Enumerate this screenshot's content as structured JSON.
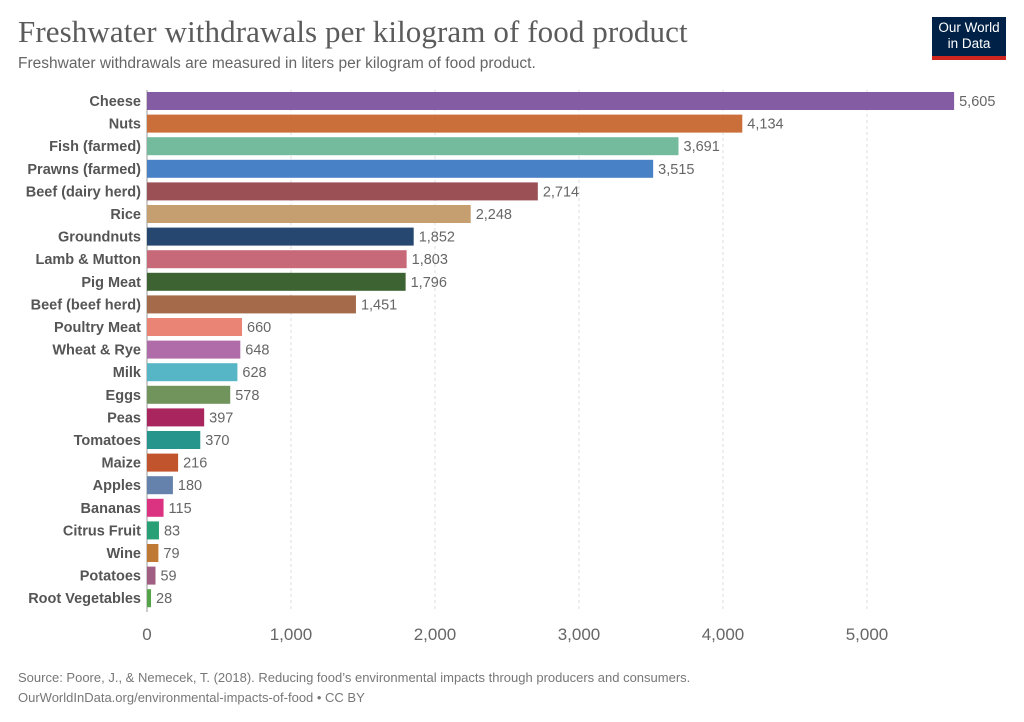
{
  "header": {
    "title": "Freshwater withdrawals per kilogram of food product",
    "subtitle": "Freshwater withdrawals are measured in liters per kilogram of food product.",
    "logo_line1": "Our World",
    "logo_line2": "in Data"
  },
  "footer": {
    "source": "Source: Poore, J., & Nemecek, T. (2018). Reducing food’s environmental impacts through producers and consumers.",
    "url": "OurWorldInData.org/environmental-impacts-of-food • CC BY"
  },
  "chart_data": {
    "type": "bar",
    "orientation": "horizontal",
    "title": "Freshwater withdrawals per kilogram of food product",
    "subtitle": "Freshwater withdrawals are measured in liters per kilogram of food product.",
    "xlabel": "",
    "ylabel": "",
    "xlim": [
      0,
      5605
    ],
    "xticks": [
      0,
      1000,
      2000,
      3000,
      4000,
      5000
    ],
    "xtick_labels": [
      "0",
      "1,000",
      "2,000",
      "3,000",
      "4,000",
      "5,000"
    ],
    "grid": "vertical dashed",
    "categories": [
      "Cheese",
      "Nuts",
      "Fish (farmed)",
      "Prawns (farmed)",
      "Beef (dairy herd)",
      "Rice",
      "Groundnuts",
      "Lamb & Mutton",
      "Pig Meat",
      "Beef (beef herd)",
      "Poultry Meat",
      "Wheat & Rye",
      "Milk",
      "Eggs",
      "Peas",
      "Tomatoes",
      "Maize",
      "Apples",
      "Bananas",
      "Citrus Fruit",
      "Wine",
      "Potatoes",
      "Root Vegetables"
    ],
    "values": [
      5605,
      4134,
      3691,
      3515,
      2714,
      2248,
      1852,
      1803,
      1796,
      1451,
      660,
      648,
      628,
      578,
      397,
      370,
      216,
      180,
      115,
      83,
      79,
      59,
      28
    ],
    "value_labels": [
      "5,605",
      "4,134",
      "3,691",
      "3,515",
      "2,714",
      "2,248",
      "1,852",
      "1,803",
      "1,796",
      "1,451",
      "660",
      "648",
      "628",
      "578",
      "397",
      "370",
      "216",
      "180",
      "115",
      "83",
      "79",
      "59",
      "28"
    ],
    "colors": [
      "#835ca3",
      "#cb6f3a",
      "#74bb9d",
      "#4881c6",
      "#9a5055",
      "#c69f70",
      "#26476f",
      "#c8697a",
      "#3c6331",
      "#a46a4a",
      "#ea8575",
      "#b06ca8",
      "#56b6c6",
      "#71935c",
      "#a8255e",
      "#26968c",
      "#c1542d",
      "#6582ad",
      "#db3382",
      "#289f74",
      "#c07835",
      "#a05e83",
      "#56a449"
    ]
  }
}
